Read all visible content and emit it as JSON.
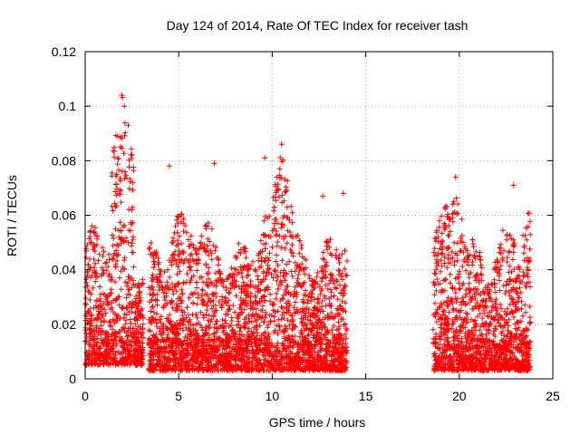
{
  "chart_data": {
    "type": "scatter",
    "title": "Day 124 of 2014, Rate Of TEC Index for receiver tash",
    "xlabel": "GPS time / hours",
    "ylabel": "ROTI / TECUs",
    "xlim": [
      0,
      25
    ],
    "ylim": [
      0,
      0.12
    ],
    "x_ticks": [
      0,
      5,
      10,
      15,
      20,
      25
    ],
    "x_tick_labels": [
      "0",
      "5",
      "10",
      "15",
      "20",
      "25"
    ],
    "y_ticks": [
      0,
      0.02,
      0.04,
      0.06,
      0.08,
      0.1,
      0.12
    ],
    "y_tick_labels": [
      "0",
      "0.02",
      "0.04",
      "0.06",
      "0.08",
      "0.1",
      "0.12"
    ],
    "grid": true,
    "marker": "+",
    "color": "#ff0000",
    "series": [
      {
        "name": "ROTI",
        "segments": [
          {
            "x_range": [
              0.0,
              3.1
            ],
            "baseline": 0.005,
            "typical_max": 0.06,
            "peak": 0.104,
            "peak_at": 2.0
          },
          {
            "x_range": [
              3.4,
              14.0
            ],
            "baseline": 0.003,
            "typical_max": 0.065,
            "peak": 0.086,
            "peak_at": 10.5
          },
          {
            "x_range": [
              18.6,
              23.8
            ],
            "baseline": 0.003,
            "typical_max": 0.065,
            "peak": 0.074,
            "peak_at": 19.8
          }
        ],
        "highlights": [
          {
            "x": 1.95,
            "y": 0.104
          },
          {
            "x": 2.1,
            "y": 0.1
          },
          {
            "x": 2.3,
            "y": 0.093
          },
          {
            "x": 2.5,
            "y": 0.082
          },
          {
            "x": 4.5,
            "y": 0.078
          },
          {
            "x": 6.9,
            "y": 0.079
          },
          {
            "x": 9.6,
            "y": 0.081
          },
          {
            "x": 10.5,
            "y": 0.086
          },
          {
            "x": 10.4,
            "y": 0.077
          },
          {
            "x": 12.7,
            "y": 0.067
          },
          {
            "x": 13.8,
            "y": 0.068
          },
          {
            "x": 19.8,
            "y": 0.074
          },
          {
            "x": 22.9,
            "y": 0.071
          }
        ]
      }
    ]
  }
}
